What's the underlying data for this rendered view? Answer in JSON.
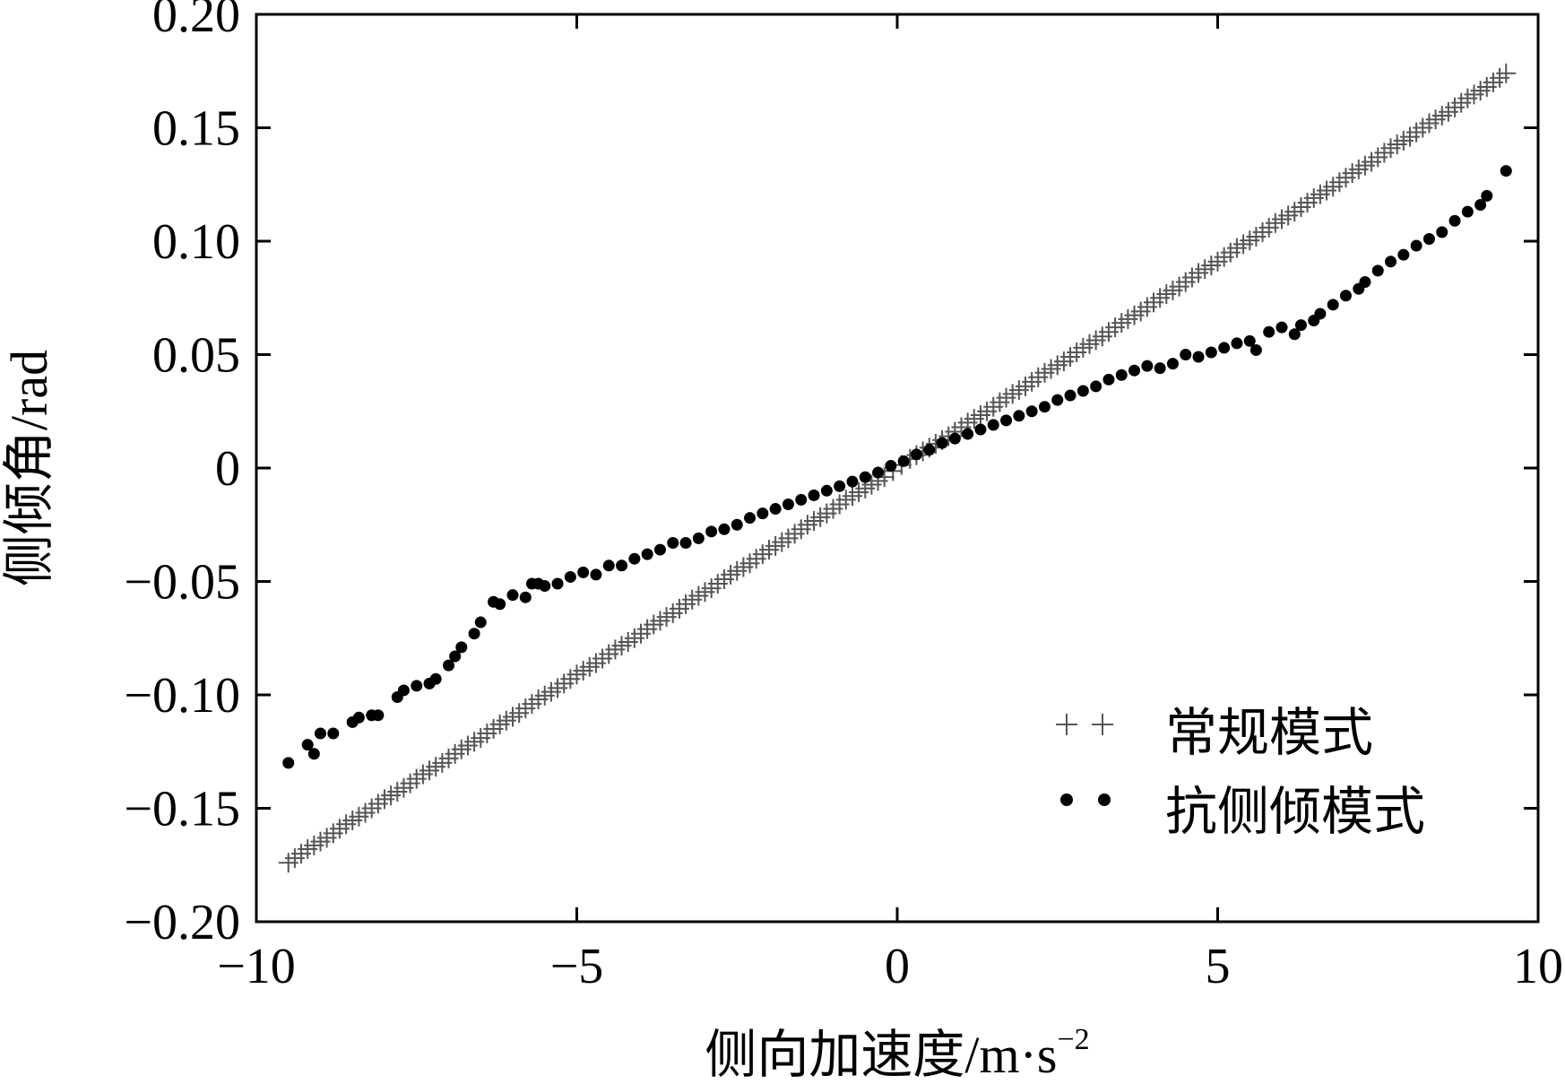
{
  "chart_data": {
    "type": "scatter",
    "title": "",
    "xlabel": "侧向加速度/m·s",
    "xlabel_superscript": "−2",
    "ylabel": "侧倾角/rad",
    "xlim": [
      -10,
      10
    ],
    "ylim": [
      -0.2,
      0.2
    ],
    "x_ticks": [
      -10,
      -5,
      0,
      5,
      10
    ],
    "x_tick_labels": [
      "−10",
      "−5",
      "0",
      "5",
      "10"
    ],
    "y_ticks": [
      -0.2,
      -0.15,
      -0.1,
      -0.05,
      0,
      0.05,
      0.1,
      0.15,
      0.2
    ],
    "y_tick_labels": [
      "−0.20",
      "−0.15",
      "−0.10",
      "−0.05",
      "0",
      "0.05",
      "0.10",
      "0.15",
      "0.20"
    ],
    "grid": false,
    "legend_position": "bottom-right",
    "series": [
      {
        "name": "常规模式",
        "marker": "plus",
        "legend_marker": "+ +",
        "color": "#555555",
        "x": [
          -9.5,
          -9.2,
          -8.9,
          -8.6,
          -8.3,
          -8.0,
          -7.7,
          -7.4,
          -7.1,
          -6.8,
          -6.5,
          -6.2,
          -5.9,
          -5.6,
          -5.3,
          -5.0,
          -4.7,
          -4.4,
          -4.1,
          -3.8,
          -3.5,
          -3.2,
          -2.9,
          -2.6,
          -2.3,
          -2.0,
          -1.7,
          -1.4,
          -1.1,
          -0.8,
          -0.5,
          -0.2,
          0.2,
          0.5,
          0.8,
          1.1,
          1.4,
          1.7,
          2.0,
          2.3,
          2.6,
          2.9,
          3.2,
          3.5,
          3.8,
          4.1,
          4.4,
          4.7,
          5.0,
          5.3,
          5.6,
          5.9,
          6.2,
          6.5,
          6.8,
          7.1,
          7.4,
          7.7,
          8.0,
          8.3,
          8.6,
          8.9,
          9.2,
          9.5
        ],
        "y": [
          -0.174,
          -0.168,
          -0.163,
          -0.157,
          -0.152,
          -0.146,
          -0.141,
          -0.135,
          -0.13,
          -0.124,
          -0.119,
          -0.113,
          -0.108,
          -0.102,
          -0.097,
          -0.091,
          -0.086,
          -0.08,
          -0.075,
          -0.069,
          -0.064,
          -0.058,
          -0.053,
          -0.047,
          -0.042,
          -0.036,
          -0.031,
          -0.025,
          -0.02,
          -0.014,
          -0.009,
          -0.004,
          0.004,
          0.009,
          0.014,
          0.02,
          0.025,
          0.031,
          0.036,
          0.042,
          0.047,
          0.053,
          0.058,
          0.064,
          0.069,
          0.075,
          0.08,
          0.086,
          0.091,
          0.097,
          0.102,
          0.108,
          0.113,
          0.119,
          0.124,
          0.13,
          0.135,
          0.141,
          0.146,
          0.152,
          0.157,
          0.163,
          0.168,
          0.174
        ]
      },
      {
        "name": "抗侧倾模式",
        "marker": "dot",
        "legend_marker": "• •",
        "color": "#000000",
        "x": [
          -9.5,
          -9.2,
          -9.1,
          -9.0,
          -8.8,
          -8.5,
          -8.4,
          -8.2,
          -8.1,
          -7.8,
          -7.7,
          -7.5,
          -7.3,
          -7.2,
          -7.0,
          -6.9,
          -6.8,
          -6.6,
          -6.5,
          -6.3,
          -6.2,
          -6.0,
          -5.8,
          -5.7,
          -5.6,
          -5.5,
          -5.3,
          -5.1,
          -4.9,
          -4.7,
          -4.5,
          -4.3,
          -4.1,
          -3.9,
          -3.7,
          -3.5,
          -3.3,
          -3.1,
          -2.9,
          -2.7,
          -2.5,
          -2.3,
          -2.1,
          -1.9,
          -1.7,
          -1.5,
          -1.3,
          -1.1,
          -0.9,
          -0.7,
          -0.5,
          -0.3,
          -0.1,
          0.1,
          0.3,
          0.5,
          0.7,
          0.9,
          1.1,
          1.3,
          1.5,
          1.7,
          1.9,
          2.1,
          2.3,
          2.5,
          2.7,
          2.9,
          3.1,
          3.3,
          3.5,
          3.7,
          3.9,
          4.1,
          4.3,
          4.5,
          4.7,
          4.9,
          5.1,
          5.3,
          5.5,
          5.6,
          5.8,
          6.0,
          6.2,
          6.3,
          6.5,
          6.6,
          6.8,
          7.0,
          7.2,
          7.3,
          7.5,
          7.7,
          7.9,
          8.1,
          8.3,
          8.5,
          8.7,
          8.9,
          9.1,
          9.2,
          9.5
        ],
        "y": [
          -0.13,
          -0.122,
          -0.126,
          -0.117,
          -0.117,
          -0.112,
          -0.11,
          -0.109,
          -0.109,
          -0.101,
          -0.098,
          -0.096,
          -0.095,
          -0.093,
          -0.087,
          -0.083,
          -0.079,
          -0.073,
          -0.068,
          -0.059,
          -0.06,
          -0.056,
          -0.057,
          -0.051,
          -0.051,
          -0.052,
          -0.051,
          -0.048,
          -0.046,
          -0.047,
          -0.043,
          -0.043,
          -0.04,
          -0.038,
          -0.036,
          -0.033,
          -0.033,
          -0.031,
          -0.028,
          -0.027,
          -0.025,
          -0.022,
          -0.02,
          -0.018,
          -0.016,
          -0.014,
          -0.012,
          -0.01,
          -0.008,
          -0.006,
          -0.004,
          -0.002,
          0.001,
          0.003,
          0.006,
          0.008,
          0.011,
          0.013,
          0.015,
          0.017,
          0.019,
          0.021,
          0.023,
          0.025,
          0.027,
          0.03,
          0.032,
          0.034,
          0.036,
          0.039,
          0.041,
          0.043,
          0.045,
          0.044,
          0.046,
          0.05,
          0.049,
          0.051,
          0.053,
          0.055,
          0.056,
          0.052,
          0.06,
          0.062,
          0.059,
          0.063,
          0.065,
          0.068,
          0.072,
          0.076,
          0.079,
          0.082,
          0.087,
          0.091,
          0.094,
          0.098,
          0.101,
          0.104,
          0.109,
          0.113,
          0.116,
          0.12,
          0.131
        ]
      }
    ]
  }
}
